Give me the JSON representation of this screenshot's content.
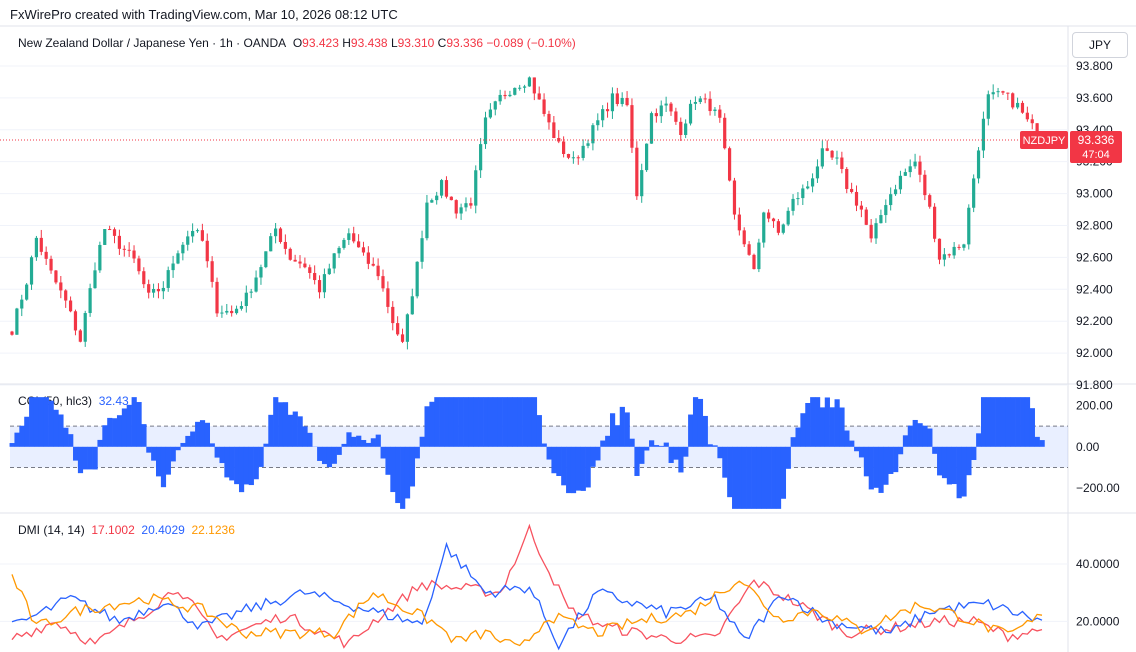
{
  "header": {
    "credit": "FxWirePro created with TradingView.com, Mar 10, 2026 08:12 UTC"
  },
  "legend": {
    "title": "New Zealand Dollar / Japanese Yen · 1h · OANDA",
    "o_label": "O",
    "o_value": "93.423",
    "h_label": "H",
    "h_value": "93.438",
    "l_label": "L",
    "l_value": "93.310",
    "c_label": "C",
    "c_value": "93.336",
    "change": "−0.089 (−0.10%)"
  },
  "currency_button": "JPY",
  "price_tag": {
    "symbol": "NZDJPY",
    "price": "93.336",
    "countdown": "47:04"
  },
  "cci_legend": {
    "name": "CCI (50, hlc3)",
    "value": "32.43"
  },
  "dmi_legend": {
    "name": "DMI (14, 14)",
    "v1": "17.1002",
    "v2": "20.4029",
    "v3": "22.1236"
  },
  "colors": {
    "up": "#22ab94",
    "down": "#f23645",
    "cci": "#2962ff",
    "plus_di": "#2962ff",
    "minus_di": "#f7525f",
    "adx": "#ff9800"
  },
  "chart_data": [
    {
      "type": "candlestick",
      "title": "New Zealand Dollar / Japanese Yen · 1h · OANDA",
      "y_ticks": [
        "93.800",
        "93.600",
        "93.400",
        "93.200",
        "93.000",
        "92.800",
        "92.600",
        "92.400",
        "92.200",
        "92.000",
        "91.800"
      ],
      "ylim": [
        91.8,
        93.85
      ],
      "last_price": 93.336,
      "close_path": [
        [
          0,
          92.15
        ],
        [
          3,
          92.45
        ],
        [
          5,
          92.72
        ],
        [
          8,
          92.5
        ],
        [
          11,
          92.32
        ],
        [
          14,
          92.08
        ],
        [
          17,
          92.55
        ],
        [
          19,
          92.78
        ],
        [
          22,
          92.68
        ],
        [
          25,
          92.58
        ],
        [
          28,
          92.35
        ],
        [
          31,
          92.42
        ],
        [
          34,
          92.65
        ],
        [
          37,
          92.78
        ],
        [
          39,
          92.7
        ],
        [
          42,
          92.28
        ],
        [
          45,
          92.25
        ],
        [
          48,
          92.35
        ],
        [
          51,
          92.55
        ],
        [
          54,
          92.78
        ],
        [
          57,
          92.6
        ],
        [
          60,
          92.55
        ],
        [
          63,
          92.4
        ],
        [
          66,
          92.6
        ],
        [
          69,
          92.75
        ],
        [
          72,
          92.6
        ],
        [
          75,
          92.5
        ],
        [
          78,
          92.2
        ],
        [
          80,
          92.05
        ],
        [
          83,
          92.55
        ],
        [
          85,
          92.95
        ],
        [
          88,
          93.05
        ],
        [
          91,
          92.9
        ],
        [
          94,
          92.95
        ],
        [
          97,
          93.45
        ],
        [
          100,
          93.6
        ],
        [
          103,
          93.68
        ],
        [
          106,
          93.72
        ],
        [
          109,
          93.5
        ],
        [
          112,
          93.3
        ],
        [
          115,
          93.2
        ],
        [
          117,
          93.3
        ],
        [
          120,
          93.45
        ],
        [
          123,
          93.6
        ],
        [
          126,
          93.55
        ],
        [
          128,
          93.0
        ],
        [
          131,
          93.5
        ],
        [
          134,
          93.55
        ],
        [
          137,
          93.4
        ],
        [
          140,
          93.6
        ],
        [
          143,
          93.55
        ],
        [
          145,
          93.45
        ],
        [
          148,
          92.85
        ],
        [
          150,
          92.7
        ],
        [
          152,
          92.5
        ],
        [
          154,
          92.9
        ],
        [
          157,
          92.75
        ],
        [
          160,
          92.95
        ],
        [
          163,
          93.05
        ],
        [
          166,
          93.25
        ],
        [
          169,
          93.2
        ],
        [
          171,
          93.05
        ],
        [
          174,
          92.9
        ],
        [
          176,
          92.7
        ],
        [
          179,
          92.95
        ],
        [
          182,
          93.1
        ],
        [
          185,
          93.2
        ],
        [
          188,
          92.9
        ],
        [
          190,
          92.6
        ],
        [
          193,
          92.65
        ],
        [
          195,
          92.7
        ],
        [
          198,
          93.3
        ],
        [
          200,
          93.6
        ],
        [
          203,
          93.62
        ],
        [
          206,
          93.55
        ],
        [
          208,
          93.45
        ],
        [
          211,
          93.34
        ]
      ],
      "n_candles": 212
    },
    {
      "type": "histogram",
      "title": "CCI (50, hlc3)",
      "y_ticks": [
        "200.00",
        "0.00",
        "−200.00"
      ],
      "ylim": [
        -320,
        260
      ],
      "band": [
        100,
        -100
      ],
      "last_value": 32.43
    },
    {
      "type": "line",
      "title": "DMI (14, 14)",
      "y_ticks": [
        "40.0000",
        "20.0000"
      ],
      "ylim": [
        10,
        55
      ],
      "series": [
        {
          "name": "DMI (14, 14)",
          "last": 17.1002,
          "anchors": [
            [
              0,
              14
            ],
            [
              9,
              20
            ],
            [
              17,
              12
            ],
            [
              28,
              24
            ],
            [
              34,
              32
            ],
            [
              42,
              14
            ],
            [
              56,
              22
            ],
            [
              69,
              12
            ],
            [
              74,
              20
            ],
            [
              84,
              33
            ],
            [
              100,
              30
            ],
            [
              106,
              52
            ],
            [
              114,
              24
            ],
            [
              122,
              18
            ],
            [
              134,
              14
            ],
            [
              144,
              14
            ],
            [
              152,
              34
            ],
            [
              160,
              27
            ],
            [
              171,
              16
            ],
            [
              182,
              18
            ],
            [
              190,
              20
            ],
            [
              197,
              20
            ],
            [
              204,
              15
            ],
            [
              211,
              17
            ]
          ]
        },
        {
          "name": "+DI",
          "last": 20.4029,
          "anchors": [
            [
              0,
              18
            ],
            [
              12,
              28
            ],
            [
              22,
              20
            ],
            [
              31,
              27
            ],
            [
              39,
              18
            ],
            [
              48,
              24
            ],
            [
              60,
              30
            ],
            [
              75,
              23
            ],
            [
              84,
              19
            ],
            [
              89,
              46
            ],
            [
              97,
              30
            ],
            [
              106,
              32
            ],
            [
              112,
              12
            ],
            [
              120,
              30
            ],
            [
              134,
              23
            ],
            [
              144,
              28
            ],
            [
              150,
              13
            ],
            [
              158,
              30
            ],
            [
              167,
              20
            ],
            [
              180,
              16
            ],
            [
              189,
              24
            ],
            [
              200,
              26
            ],
            [
              211,
              20
            ]
          ]
        },
        {
          "name": "−DI",
          "last": 22.1236,
          "anchors": [
            [
              0,
              36
            ],
            [
              5,
              18
            ],
            [
              14,
              24
            ],
            [
              28,
              28
            ],
            [
              39,
              24
            ],
            [
              47,
              16
            ],
            [
              66,
              16
            ],
            [
              74,
              30
            ],
            [
              86,
              20
            ],
            [
              91,
              13
            ],
            [
              97,
              16
            ],
            [
              104,
              10
            ],
            [
              110,
              22
            ],
            [
              120,
              16
            ],
            [
              128,
              20
            ],
            [
              139,
              23
            ],
            [
              149,
              35
            ],
            [
              157,
              21
            ],
            [
              165,
              24
            ],
            [
              174,
              17
            ],
            [
              186,
              26
            ],
            [
              194,
              22
            ],
            [
              204,
              15
            ],
            [
              211,
              22
            ]
          ]
        }
      ]
    }
  ]
}
